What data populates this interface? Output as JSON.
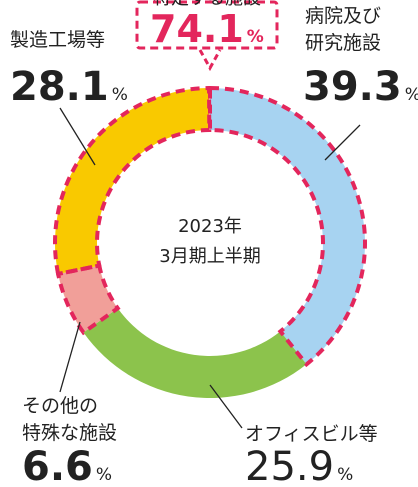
{
  "chart_data": {
    "type": "donut",
    "center_text": [
      "2023年",
      "3月期上半期"
    ],
    "unit": "%",
    "categories": [
      [
        "病院及び",
        "研究施設"
      ],
      [
        "オフィスビル等"
      ],
      [
        "その他の",
        "特殊な施設"
      ],
      [
        "製造工場等"
      ]
    ],
    "values": [
      39.3,
      25.9,
      6.6,
      28.1
    ],
    "colors": [
      "#a7d3f1",
      "#8cc34c",
      "#f19f99",
      "#f9c900"
    ],
    "highlight": {
      "label": "特定する施設",
      "value": 74.1,
      "members": [
        0,
        2,
        3
      ],
      "color": "#e3265c"
    }
  }
}
